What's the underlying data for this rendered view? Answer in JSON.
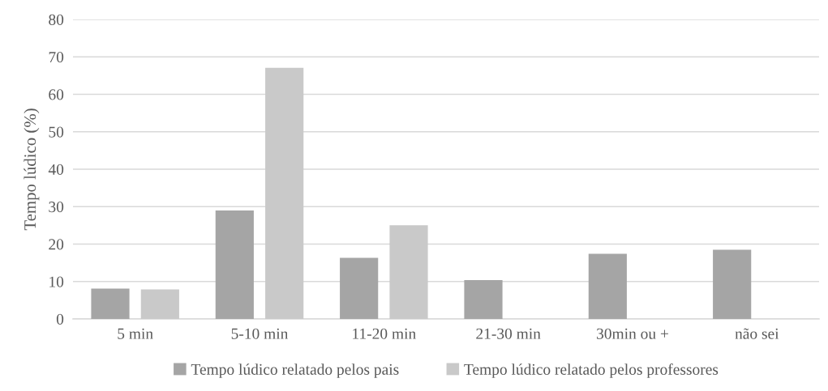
{
  "chart_data": {
    "type": "bar",
    "ylabel": "Tempo lúdico (%)",
    "categories": [
      "5 min",
      "5-10 min",
      "11-20 min",
      "21-30 min",
      "30min ou +",
      "não sei"
    ],
    "series": [
      {
        "name": "Tempo lúdico relatado pelos pais",
        "color": "#a5a5a5",
        "values": [
          8.1,
          29.0,
          16.3,
          10.4,
          17.4,
          18.5
        ]
      },
      {
        "name": "Tempo lúdico relatado pelos professores",
        "color": "#c9c9c9",
        "values": [
          7.9,
          67.1,
          25.0,
          null,
          null,
          null
        ]
      }
    ],
    "ylim": [
      0,
      80
    ],
    "yticks": [
      0,
      10,
      20,
      30,
      40,
      50,
      60,
      70,
      80
    ],
    "grid": "y",
    "legend": "bottom"
  }
}
